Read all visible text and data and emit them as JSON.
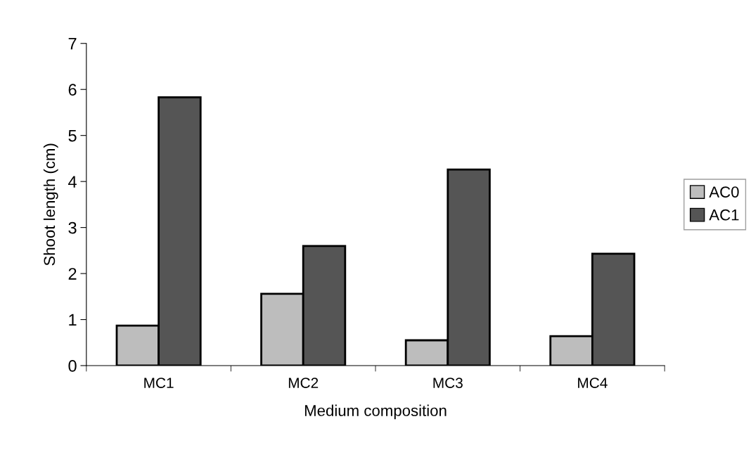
{
  "chart_data": {
    "type": "bar",
    "xlabel": "Medium composition",
    "ylabel": "Shoot length (cm)",
    "categories": [
      "MC1",
      "MC2",
      "MC3",
      "MC4"
    ],
    "series": [
      {
        "name": "AC0",
        "color": "#bdbdbd",
        "values": [
          0.87,
          1.56,
          0.55,
          0.64
        ]
      },
      {
        "name": "AC1",
        "color": "#555555",
        "values": [
          5.83,
          2.6,
          4.26,
          2.43
        ]
      }
    ],
    "ylim": [
      0,
      7
    ],
    "yticks": [
      0,
      1,
      2,
      3,
      4,
      5,
      6,
      7
    ],
    "grid": false,
    "legend": "right"
  }
}
